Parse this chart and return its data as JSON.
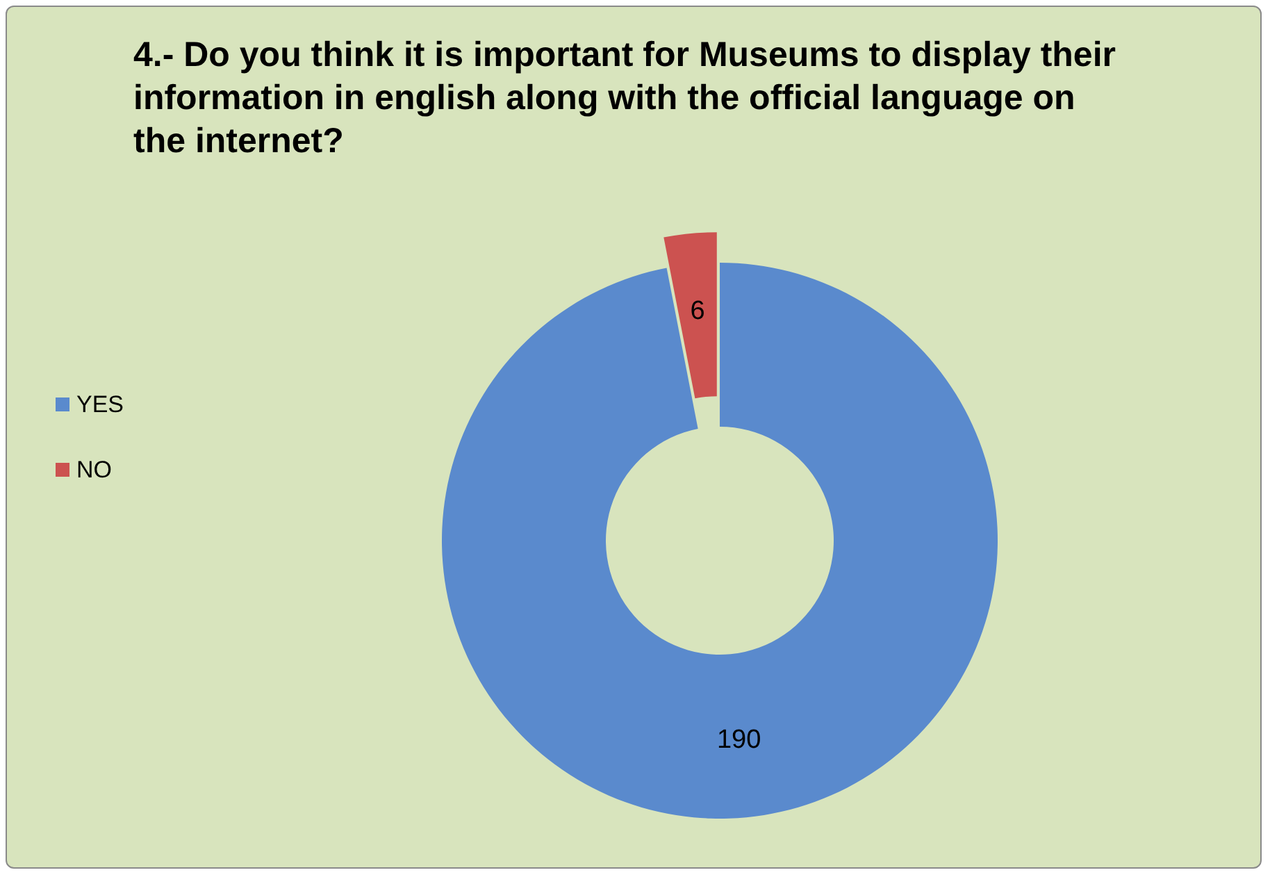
{
  "chart_data": {
    "type": "donut",
    "title": "4.- Do you think it is important for Museums to display their information in english along with the official language on the internet?",
    "categories": [
      "YES",
      "NO"
    ],
    "values": [
      190,
      6
    ],
    "colors": [
      "#5a8acd",
      "#cc5250"
    ],
    "legend": "left",
    "data_labels": true
  }
}
